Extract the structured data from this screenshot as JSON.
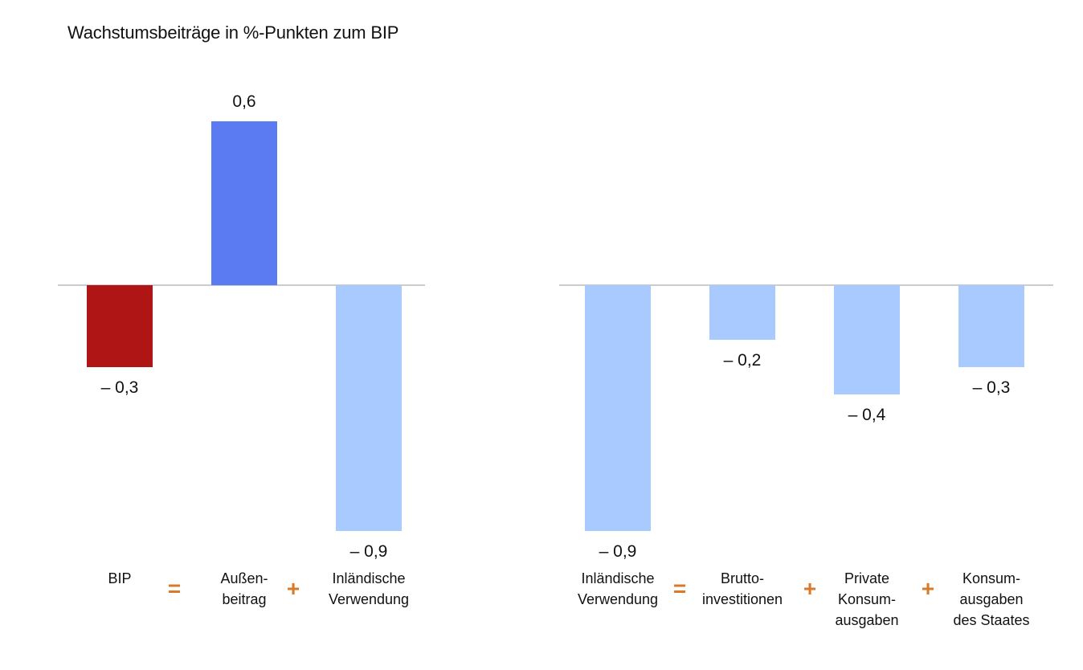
{
  "chart_data": [
    {
      "type": "bar",
      "title": "Wachstumsbeiträge in %-Punkten zum BIP",
      "categories": [
        "BIP",
        "Außen-\nbeitrag",
        "Inländische\nVerwendung"
      ],
      "values": [
        -0.3,
        0.6,
        -0.9
      ],
      "value_labels": [
        "– 0,3",
        "0,6",
        "– 0,9"
      ],
      "colors": [
        "#b01515",
        "#5b7bf3",
        "#a9caff"
      ],
      "operators": [
        "=",
        "+"
      ],
      "grid": false,
      "legend": "none"
    },
    {
      "type": "bar",
      "categories": [
        "Inländische\nVerwendung",
        "Brutto-\ninvestitionen",
        "Private\nKonsum-\nausgaben",
        "Konsum-\nausgaben\ndes Staates"
      ],
      "values": [
        -0.9,
        -0.2,
        -0.4,
        -0.3
      ],
      "value_labels": [
        "– 0,9",
        "– 0,2",
        "– 0,4",
        "– 0,3"
      ],
      "colors": [
        "#a9caff",
        "#a9caff",
        "#a9caff",
        "#a9caff"
      ],
      "operators": [
        "=",
        "+",
        "+"
      ],
      "grid": false,
      "legend": "none"
    }
  ],
  "colors": {
    "axis_line": "#999999",
    "operator": "#d97a2b"
  }
}
